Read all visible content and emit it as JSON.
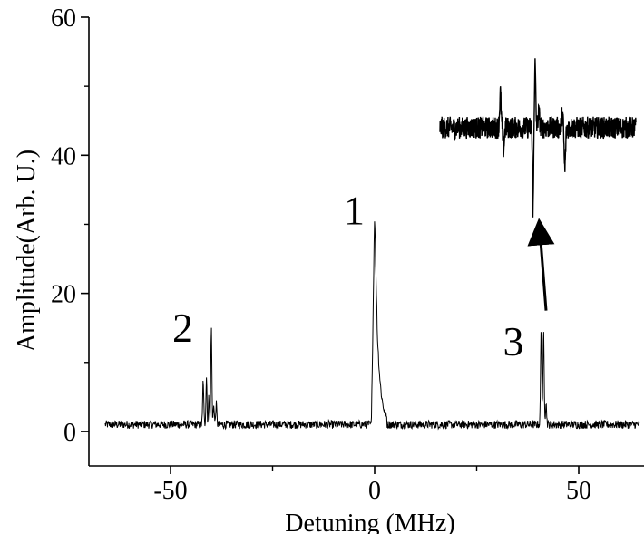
{
  "chart_data": {
    "type": "line",
    "title": "",
    "xlabel": "Detuning (MHz)",
    "ylabel": "Amplitude(Arb. U.)",
    "xlim": [
      -70,
      66
    ],
    "ylim": [
      -5,
      60
    ],
    "x_ticks": [
      -50,
      0,
      50
    ],
    "x_tick_labels": [
      "-50",
      "0",
      "50"
    ],
    "x_minor_ticks": [
      -25,
      25
    ],
    "y_ticks": [
      0,
      20,
      40,
      60
    ],
    "y_tick_labels": [
      "0",
      "20",
      "40",
      "60"
    ],
    "y_minor_ticks": [
      10,
      30,
      50
    ],
    "grid": false,
    "legend": "none",
    "baseline": 1,
    "x_range": [
      -66,
      65
    ],
    "peaks": [
      {
        "label": "1",
        "x": 0,
        "height": 32,
        "label_x": -5,
        "label_y": 30
      },
      {
        "label": "2",
        "x": -40,
        "height": 15,
        "label_x": -47,
        "label_y": 13
      },
      {
        "label": "3",
        "x": 41,
        "height": 15,
        "label_x": 34,
        "label_y": 11
      }
    ],
    "inset": {
      "description_note": "",
      "x_range": [
        16,
        64
      ],
      "baseline": 44,
      "features": [
        {
          "x": 31,
          "amplitude": 5
        },
        {
          "x": 39,
          "amplitude": 9,
          "min": 32
        },
        {
          "x": 46.5,
          "amplitude": -6
        }
      ]
    },
    "arrow": {
      "from": [
        42,
        17.5
      ],
      "to": [
        40.5,
        30
      ]
    }
  }
}
